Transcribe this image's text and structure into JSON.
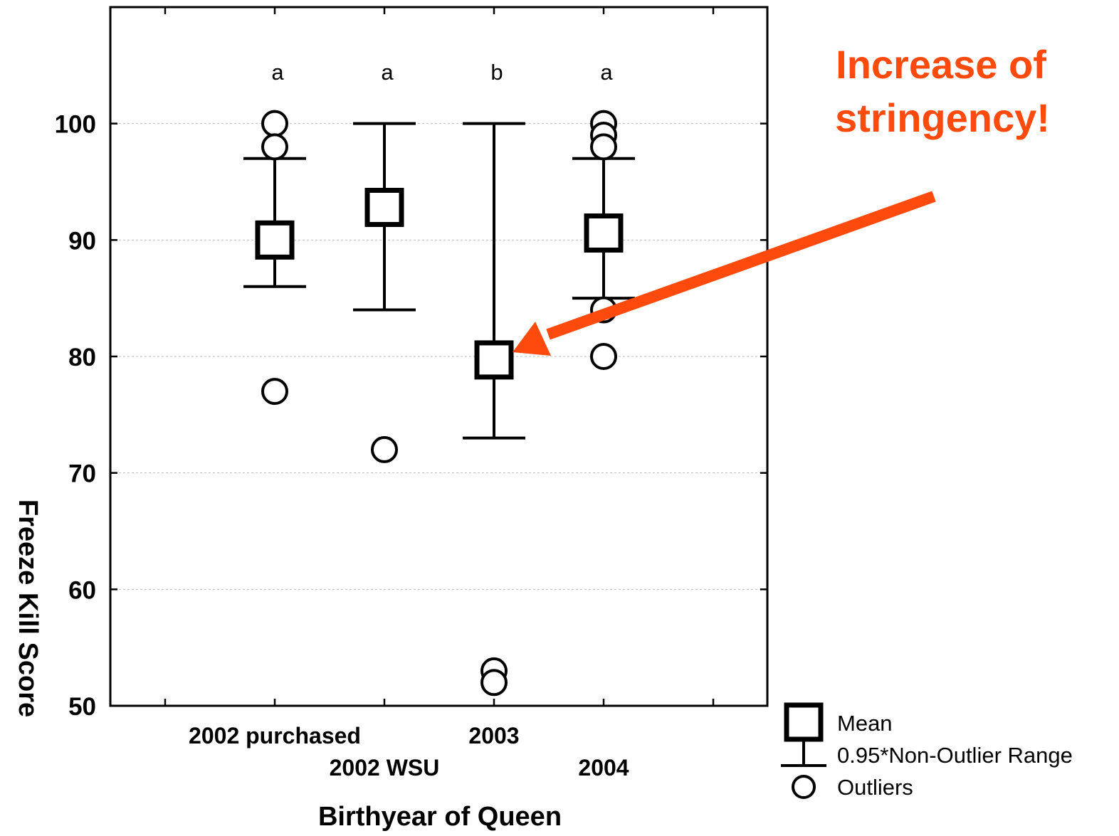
{
  "chart_data": {
    "type": "box",
    "xlabel": "Birthyear of Queen",
    "ylabel": "Freeze Kill Score",
    "ylim": [
      50,
      110
    ],
    "yticks": [
      50,
      60,
      70,
      80,
      90,
      100
    ],
    "grid": true,
    "categories": [
      "2002 purchased",
      "2002 WSU",
      "2003",
      "2004"
    ],
    "group_letters": [
      "a",
      "a",
      "b",
      "a"
    ],
    "mean": [
      90,
      92.8,
      79.7,
      90.6
    ],
    "whisker_low": [
      86,
      84,
      73,
      85
    ],
    "whisker_high": [
      97,
      100,
      100,
      97
    ],
    "outliers": [
      [
        100,
        98,
        77
      ],
      [
        72
      ],
      [
        53,
        52
      ],
      [
        100,
        99,
        98,
        84,
        80
      ]
    ],
    "legend": {
      "position": "bottom-right",
      "mean": "Mean",
      "range": "0.95*Non-Outlier Range",
      "outliers": "Outliers"
    },
    "annotation": {
      "lines": [
        "Increase of",
        "stringency!"
      ],
      "points_to_category": "2003",
      "color": "#ff4a0d"
    }
  }
}
